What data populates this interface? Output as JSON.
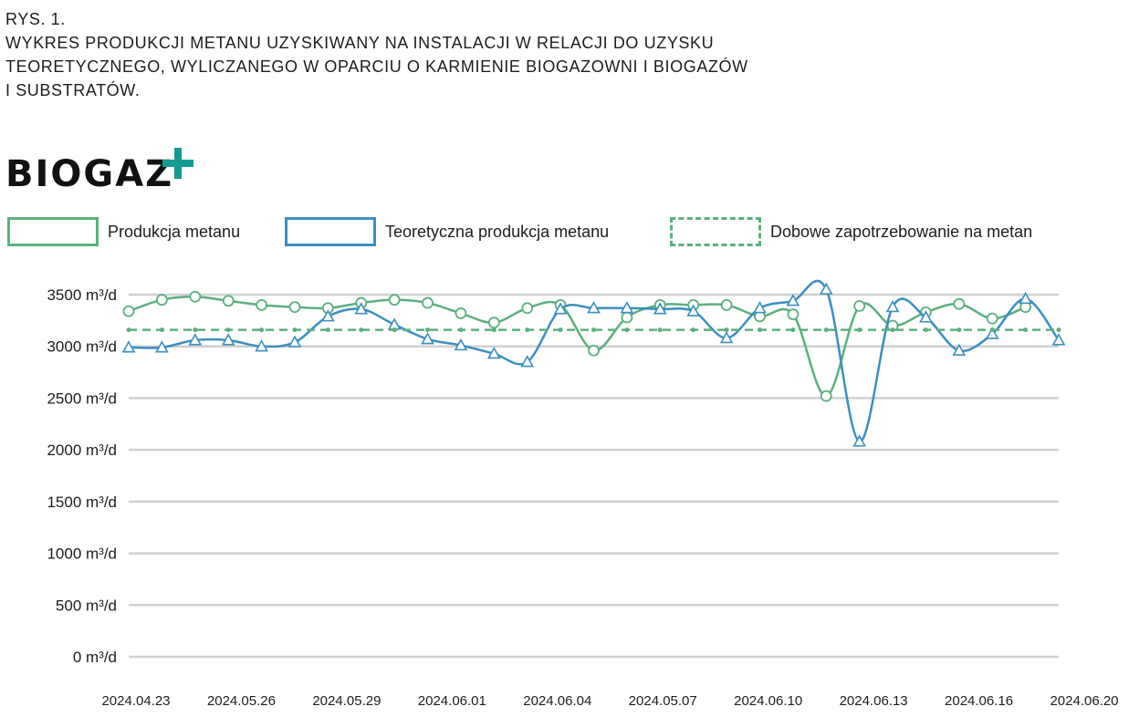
{
  "caption": {
    "line1": "RYS. 1.",
    "line2": "WYKRES PRODUKCJI METANU UZYSKIWANY NA INSTALACJI W RELACJI DO UZYSKU",
    "line3": "TEORETYCZNEGO, WYLICZANEGO W OPARCIU O KARMIENIE BIOGAZOWNI I BIOGAZÓW",
    "line4": "I SUBSTRATÓW."
  },
  "logo": {
    "text": "BIOGAZ",
    "plus_color": "#139b93"
  },
  "colors": {
    "green": "#5bb07e",
    "blue": "#3b8fc0",
    "grid": "#d0d0d0"
  },
  "chart_data": {
    "type": "line",
    "title": "",
    "xlabel": "",
    "ylabel": "",
    "ylim": [
      0,
      3500
    ],
    "yticks": [
      "0 m³/d",
      "500 m³/d",
      "1000 m³/d",
      "1500 m³/d",
      "2000 m³/d",
      "2500 m³/d",
      "3000 m³/d",
      "3500 m³/d"
    ],
    "ytick_values": [
      0,
      500,
      1000,
      1500,
      2000,
      2500,
      3000,
      3500
    ],
    "xticks": [
      "2024.04.23",
      "2024.05.26",
      "2024.05.29",
      "2024.06.01",
      "2024.06.04",
      "2024.05.07",
      "2024.06.10",
      "2024.06.13",
      "2024.06.16",
      "2024.06.20"
    ],
    "grid": true,
    "legend_position": "top",
    "series": [
      {
        "name": "Produkcja metanu",
        "style": "solid",
        "marker": "circle",
        "color": "#5bb07e",
        "values": [
          3340,
          3450,
          3480,
          3440,
          3400,
          3380,
          3370,
          3420,
          3450,
          3420,
          3320,
          3230,
          3370,
          3400,
          2960,
          3280,
          3400,
          3400,
          3400,
          3290,
          3310,
          2520,
          3390,
          3200,
          3330,
          3410,
          3270,
          3380,
          null
        ]
      },
      {
        "name": "Teoretyczna produkcja metanu",
        "style": "solid",
        "marker": "triangle",
        "color": "#3b8fc0",
        "values": [
          2990,
          2990,
          3060,
          3060,
          3000,
          3040,
          3290,
          3360,
          3210,
          3070,
          3010,
          2930,
          2850,
          3360,
          3370,
          3370,
          3360,
          3340,
          3080,
          3370,
          3440,
          3550,
          2080,
          3380,
          3280,
          2960,
          3120,
          3460,
          3060
        ]
      },
      {
        "name": "Dobowe zapotrzebowanie na metan",
        "style": "dashed",
        "marker": "dot",
        "color": "#5bb07e",
        "values": [
          3160,
          3160,
          3160,
          3160,
          3160,
          3160,
          3160,
          3160,
          3160,
          3160,
          3160,
          3160,
          3160,
          3160,
          3160,
          3160,
          3160,
          3160,
          3160,
          3160,
          3160,
          3160,
          3160,
          3160,
          3160,
          3160,
          3160,
          3160,
          3160
        ]
      }
    ]
  }
}
